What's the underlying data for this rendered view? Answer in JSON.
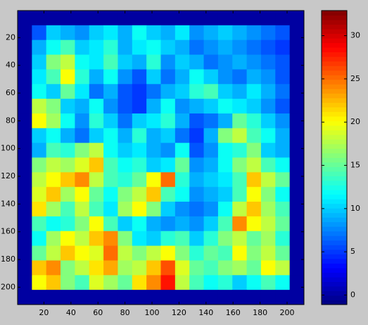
{
  "chart_data": {
    "type": "heatmap",
    "colormap": "jet",
    "x": [
      5.8,
      16.4,
      27,
      37.6,
      48.2,
      58.8,
      69.4,
      80,
      90.6,
      101.2,
      111.8,
      122.4,
      133,
      143.6,
      154.2,
      164.8,
      175.4,
      186,
      196.6,
      207.2
    ],
    "y": [
      5.8,
      16.4,
      27,
      37.6,
      48.2,
      58.8,
      69.4,
      80,
      90.6,
      101.2,
      111.8,
      122.4,
      133,
      143.6,
      154.2,
      164.8,
      175.4,
      186,
      196.6,
      207.2
    ],
    "z": [
      [
        0,
        0,
        0,
        0,
        0,
        0,
        0,
        0,
        0,
        0,
        0,
        0,
        0,
        0,
        0,
        0,
        0,
        0,
        0,
        0
      ],
      [
        0,
        6,
        10,
        9,
        8,
        10,
        11,
        9,
        12,
        10,
        9,
        11,
        8,
        9,
        10,
        9,
        8,
        7,
        6,
        0
      ],
      [
        0,
        9,
        12,
        14,
        10,
        11,
        13,
        9,
        11,
        12,
        10,
        9,
        7,
        8,
        9,
        8,
        7,
        6,
        5,
        0
      ],
      [
        0,
        10,
        16,
        18,
        12,
        11,
        14,
        10,
        9,
        13,
        8,
        10,
        9,
        7,
        8,
        9,
        8,
        7,
        6,
        0
      ],
      [
        0,
        11,
        14,
        20,
        13,
        9,
        12,
        8,
        6,
        10,
        7,
        9,
        12,
        10,
        8,
        7,
        9,
        8,
        6,
        0
      ],
      [
        0,
        12,
        10,
        15,
        11,
        7,
        9,
        6,
        5,
        7,
        9,
        10,
        13,
        14,
        10,
        9,
        11,
        9,
        7,
        0
      ],
      [
        0,
        18,
        16,
        10,
        9,
        12,
        8,
        6,
        5,
        9,
        12,
        8,
        9,
        10,
        12,
        11,
        10,
        8,
        6,
        0
      ],
      [
        0,
        20,
        17,
        12,
        8,
        13,
        10,
        7,
        10,
        11,
        13,
        9,
        6,
        7,
        9,
        15,
        13,
        10,
        8,
        0
      ],
      [
        0,
        10,
        12,
        9,
        7,
        10,
        12,
        9,
        13,
        9,
        10,
        7,
        5,
        9,
        16,
        18,
        14,
        12,
        9,
        0
      ],
      [
        0,
        9,
        14,
        13,
        16,
        18,
        12,
        10,
        11,
        9,
        8,
        12,
        6,
        8,
        12,
        13,
        16,
        10,
        9,
        0
      ],
      [
        0,
        16,
        18,
        17,
        19,
        22,
        14,
        12,
        13,
        10,
        11,
        15,
        8,
        9,
        12,
        16,
        18,
        14,
        12,
        0
      ],
      [
        0,
        18,
        20,
        22,
        24,
        18,
        14,
        13,
        15,
        20,
        25,
        13,
        9,
        10,
        11,
        14,
        22,
        18,
        15,
        0
      ],
      [
        0,
        19,
        22,
        17,
        20,
        15,
        12,
        16,
        18,
        22,
        14,
        12,
        8,
        9,
        10,
        14,
        20,
        16,
        12,
        0
      ],
      [
        0,
        21,
        17,
        14,
        18,
        14,
        11,
        17,
        20,
        16,
        10,
        8,
        7,
        8,
        12,
        18,
        22,
        17,
        14,
        0
      ],
      [
        0,
        14,
        12,
        13,
        16,
        20,
        14,
        10,
        12,
        9,
        8,
        9,
        8,
        10,
        14,
        24,
        20,
        18,
        15,
        0
      ],
      [
        0,
        12,
        17,
        20,
        18,
        22,
        24,
        16,
        11,
        10,
        13,
        14,
        10,
        13,
        16,
        18,
        15,
        17,
        13,
        0
      ],
      [
        0,
        15,
        18,
        22,
        20,
        19,
        25,
        18,
        16,
        18,
        20,
        16,
        13,
        15,
        14,
        20,
        16,
        18,
        15,
        0
      ],
      [
        0,
        22,
        24,
        16,
        18,
        21,
        23,
        17,
        18,
        22,
        26,
        19,
        15,
        14,
        16,
        17,
        15,
        20,
        18,
        0
      ],
      [
        0,
        20,
        22,
        16,
        14,
        19,
        17,
        15,
        21,
        24,
        28,
        18,
        14,
        12,
        13,
        10,
        12,
        14,
        12,
        0
      ],
      [
        0,
        0,
        0,
        0,
        0,
        0,
        0,
        0,
        0,
        0,
        0,
        0,
        0,
        0,
        0,
        0,
        0,
        0,
        0,
        0
      ]
    ],
    "xlim": [
      0.5,
      212.5
    ],
    "ylim": [
      0.5,
      212.5
    ],
    "y_reversed": true,
    "xticks": [
      20,
      40,
      60,
      80,
      100,
      120,
      140,
      160,
      180,
      200
    ],
    "yticks": [
      20,
      40,
      60,
      80,
      100,
      120,
      140,
      160,
      180,
      200
    ],
    "clim": [
      -1.1,
      32.9
    ],
    "cticks": [
      0,
      5,
      10,
      15,
      20,
      25,
      30
    ]
  }
}
